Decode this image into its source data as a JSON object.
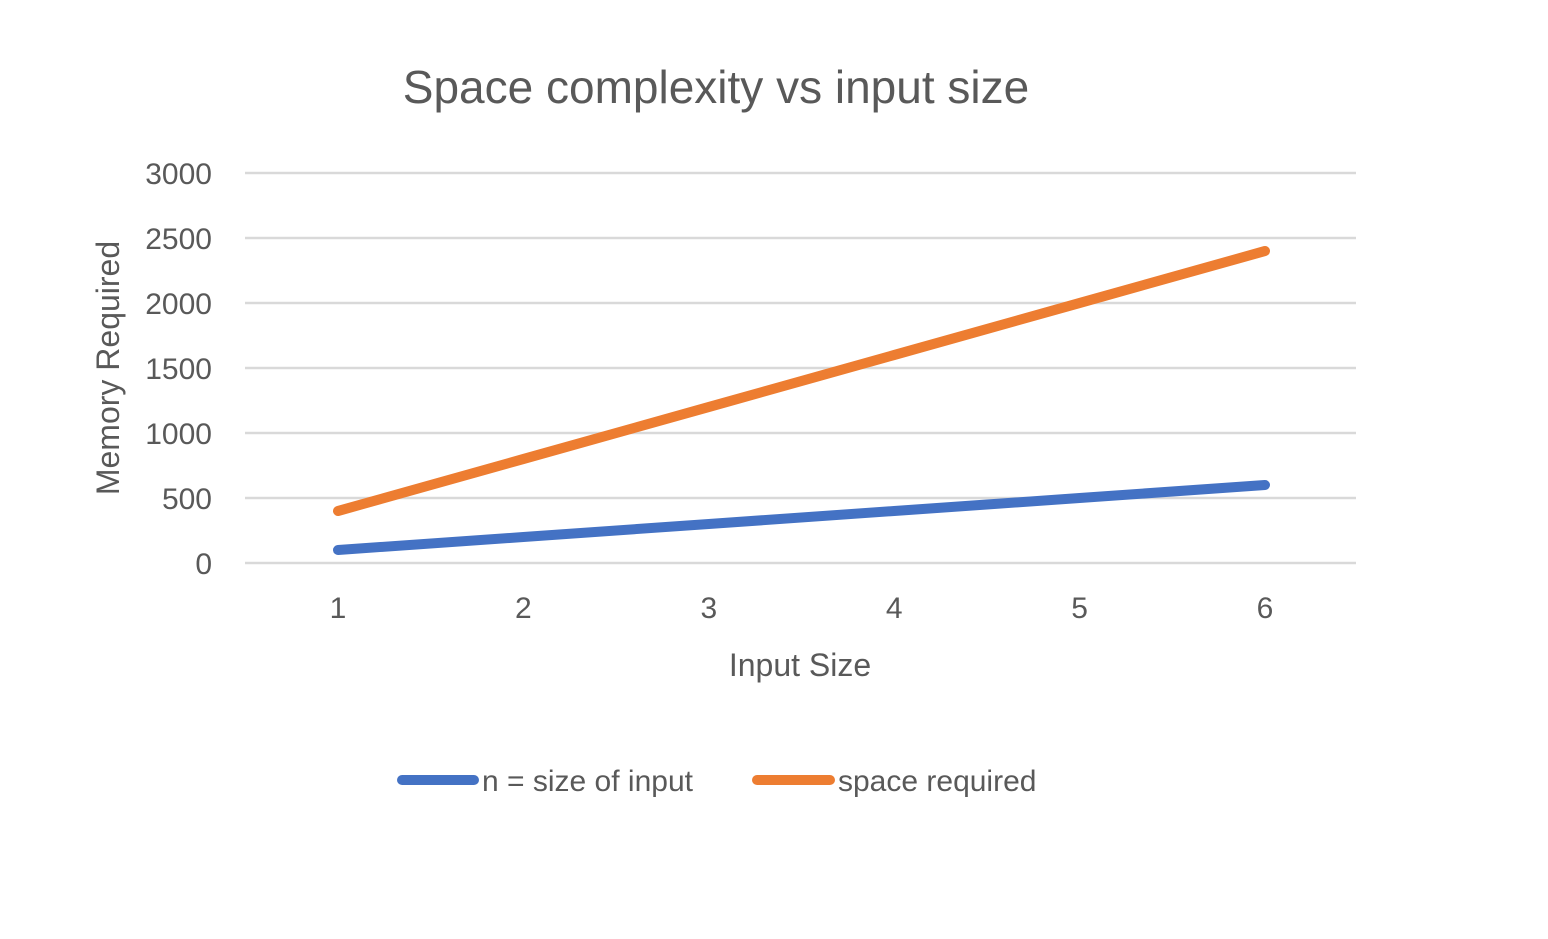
{
  "chart_data": {
    "type": "line",
    "title": "Space complexity vs input size",
    "xlabel": "Input Size",
    "ylabel": "Memory Required",
    "categories": [
      "1",
      "2",
      "3",
      "4",
      "5",
      "6"
    ],
    "y_ticks": [
      "0",
      "500",
      "1000",
      "1500",
      "2000",
      "2500",
      "3000"
    ],
    "ylim": [
      0,
      3000
    ],
    "grid": true,
    "legend_position": "bottom",
    "series": [
      {
        "name": "n = size of input",
        "color": "#4472C4",
        "values": [
          100,
          200,
          300,
          400,
          500,
          600
        ]
      },
      {
        "name": "space required",
        "color": "#ED7D31",
        "values": [
          400,
          800,
          1200,
          1600,
          2000,
          2400
        ]
      }
    ]
  }
}
